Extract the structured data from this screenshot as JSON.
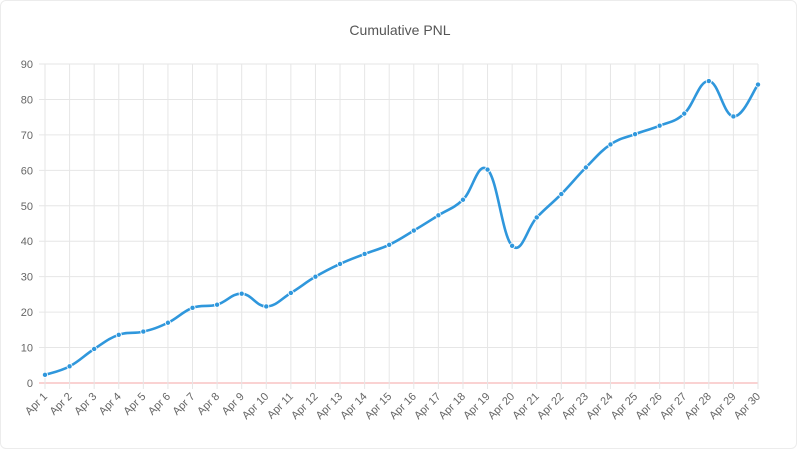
{
  "chart_data": {
    "type": "line",
    "title": "Cumulative PNL",
    "xlabel": "",
    "ylabel": "",
    "categories": [
      "Apr 1",
      "Apr 2",
      "Apr 3",
      "Apr 4",
      "Apr 5",
      "Apr 6",
      "Apr 7",
      "Apr 8",
      "Apr 9",
      "Apr 10",
      "Apr 11",
      "Apr 12",
      "Apr 13",
      "Apr 14",
      "Apr 15",
      "Apr 16",
      "Apr 17",
      "Apr 18",
      "Apr 19",
      "Apr 20",
      "Apr 21",
      "Apr 22",
      "Apr 23",
      "Apr 24",
      "Apr 25",
      "Apr 26",
      "Apr 27",
      "Apr 28",
      "Apr 29",
      "Apr 30"
    ],
    "series": [
      {
        "values": [
          2.3,
          4.7,
          9.6,
          13.6,
          14.5,
          17.0,
          21.2,
          22.1,
          25.2,
          21.6,
          25.4,
          30.0,
          33.6,
          36.4,
          39.0,
          43.0,
          47.3,
          51.7,
          60.2,
          38.7,
          46.7,
          53.3,
          60.8,
          67.3,
          70.2,
          72.6,
          76.0,
          85.2,
          75.2,
          84.2
        ],
        "color": "#2f97dc"
      }
    ],
    "ylim": [
      0,
      90
    ],
    "yticks": [
      0,
      10,
      20,
      30,
      40,
      50,
      60,
      70,
      80,
      90
    ],
    "grid": true,
    "legend": "none",
    "zero_line_color": "#f4a6a6",
    "grid_color": "#e6e6e6"
  }
}
